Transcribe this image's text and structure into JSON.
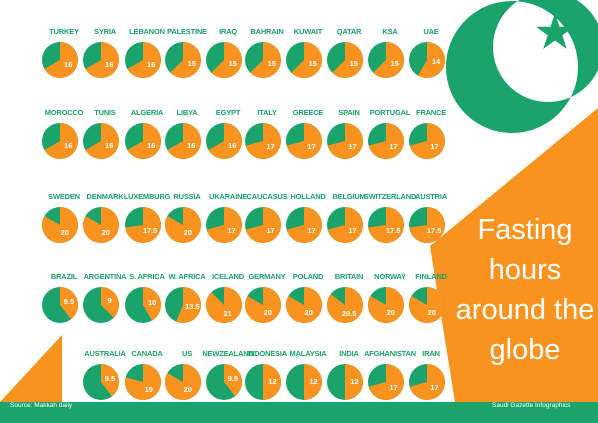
{
  "colors": {
    "green": "#1aa36a",
    "orange": "#f7931e",
    "label": "#1aa36a"
  },
  "chart_data": {
    "type": "pie",
    "unit": "hours out of 24",
    "rows": [
      [
        {
          "country": "TURKEY",
          "label": "16",
          "hours": 16
        },
        {
          "country": "SYRIA",
          "label": "16",
          "hours": 16
        },
        {
          "country": "LEBANON",
          "label": "16",
          "hours": 16
        },
        {
          "country": "PALESTINE",
          "label": "15",
          "hours": 15
        },
        {
          "country": "IRAQ",
          "label": "15",
          "hours": 15
        },
        {
          "country": "BAHRAIN",
          "label": "15",
          "hours": 15
        },
        {
          "country": "KUWAIT",
          "label": "15",
          "hours": 15
        },
        {
          "country": "QATAR",
          "label": "15",
          "hours": 15
        },
        {
          "country": "KSA",
          "label": "15",
          "hours": 15
        },
        {
          "country": "UAE",
          "label": "14",
          "hours": 14
        }
      ],
      [
        {
          "country": "MOROCCO",
          "label": "16",
          "hours": 16
        },
        {
          "country": "TUNIS",
          "label": "16",
          "hours": 16
        },
        {
          "country": "ALGERIA",
          "label": "16",
          "hours": 16
        },
        {
          "country": "LIBYA",
          "label": "16",
          "hours": 16
        },
        {
          "country": "EGYPT",
          "label": "16",
          "hours": 16
        },
        {
          "country": "ITALY",
          "label": "17",
          "hours": 17
        },
        {
          "country": "GREECE",
          "label": "17",
          "hours": 17
        },
        {
          "country": "SPAIN",
          "label": "17",
          "hours": 17
        },
        {
          "country": "PORTUGAL",
          "label": "17",
          "hours": 17
        },
        {
          "country": "FRANCE",
          "label": "17",
          "hours": 17
        }
      ],
      [
        {
          "country": "SWEDEN",
          "label": "20",
          "hours": 20
        },
        {
          "country": "DENMARK",
          "label": "20",
          "hours": 20
        },
        {
          "country": "LUXEMBURG",
          "label": "17.5",
          "hours": 17.5
        },
        {
          "country": "RUSSIA",
          "label": "20",
          "hours": 20
        },
        {
          "country": "UKARAINE",
          "label": "17",
          "hours": 17
        },
        {
          "country": "CAUCASUS",
          "label": "17",
          "hours": 17
        },
        {
          "country": "HOLLAND",
          "label": "17",
          "hours": 17
        },
        {
          "country": "BELGIUM",
          "label": "17",
          "hours": 17
        },
        {
          "country": "SWITZERLAND",
          "label": "17.5",
          "hours": 17.5
        },
        {
          "country": "AUSTRIA",
          "label": "17.5",
          "hours": 17.5
        }
      ],
      [
        {
          "country": "BRAZIL",
          "label": "9.5",
          "hours": 9.5
        },
        {
          "country": "ARGENTINA",
          "label": "9",
          "hours": 9
        },
        {
          "country": "S. AFRICA",
          "label": "10",
          "hours": 10
        },
        {
          "country": "W. AFRICA",
          "label": "13.5",
          "hours": 13.5
        },
        {
          "country": "ICELAND",
          "label": "21",
          "hours": 21
        },
        {
          "country": "GERMANY",
          "label": "20",
          "hours": 20
        },
        {
          "country": "POLAND",
          "label": "20",
          "hours": 20
        },
        {
          "country": "BRITAIN",
          "label": "20.5",
          "hours": 20.5
        },
        {
          "country": "NORWAY",
          "label": "20",
          "hours": 20
        },
        {
          "country": "FINLAND",
          "label": "20",
          "hours": 20
        }
      ],
      [
        {
          "country": "AUSTRALIA",
          "label": "9.5",
          "hours": 9.5
        },
        {
          "country": "CANADA",
          "label": "19",
          "hours": 19
        },
        {
          "country": "US",
          "label": "20",
          "hours": 20
        },
        {
          "country": "NEWZEALAND",
          "label": "9.5",
          "hours": 9.5
        },
        {
          "country": "INDONESIA",
          "label": "12",
          "hours": 12
        },
        {
          "country": "MALAYSIA",
          "label": "12",
          "hours": 12
        },
        {
          "country": "INDIA",
          "label": "12",
          "hours": 12
        },
        {
          "country": "AFGHANISTAN",
          "label": "17",
          "hours": 17
        },
        {
          "country": "IRAN",
          "label": "17",
          "hours": 17
        }
      ]
    ]
  },
  "title": {
    "line1": "Fasting",
    "line2": "hours",
    "line3": "around the",
    "line4": "globe"
  },
  "source": "Source: Makkah daily",
  "credit": "Saudi Gazette Infographics"
}
